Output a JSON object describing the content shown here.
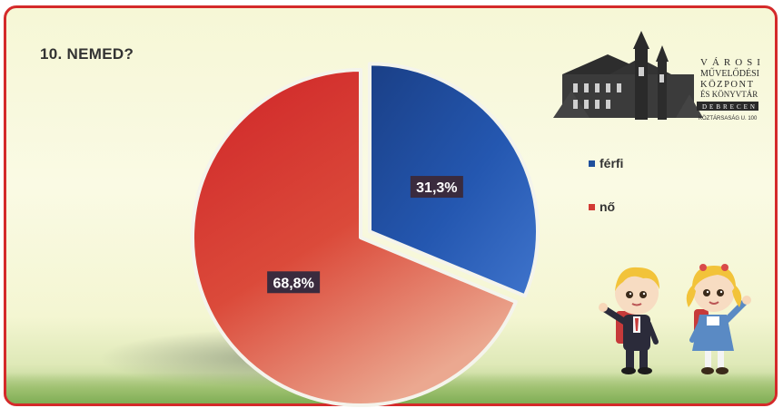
{
  "slide": {
    "title": "10. NEMED?"
  },
  "logo": {
    "line1": "VÁROSI",
    "line2": "MŰVELŐDÉSI",
    "line3": "KÖZPONT",
    "line4": "ÉS KÖNYVTÁR",
    "line5": "DEBRECEN",
    "line6": "KÖZTÁRSASÁG U. 100"
  },
  "chart_data": {
    "type": "pie",
    "title": "10. NEMED?",
    "categories": [
      "férfi",
      "nő"
    ],
    "values": [
      31.3,
      68.8
    ],
    "data_labels": [
      "31,3%",
      "68,8%"
    ],
    "colors": [
      "#1f4f9c",
      "#d23a34"
    ],
    "exploded": [
      "férfi"
    ],
    "legend_position": "right"
  }
}
